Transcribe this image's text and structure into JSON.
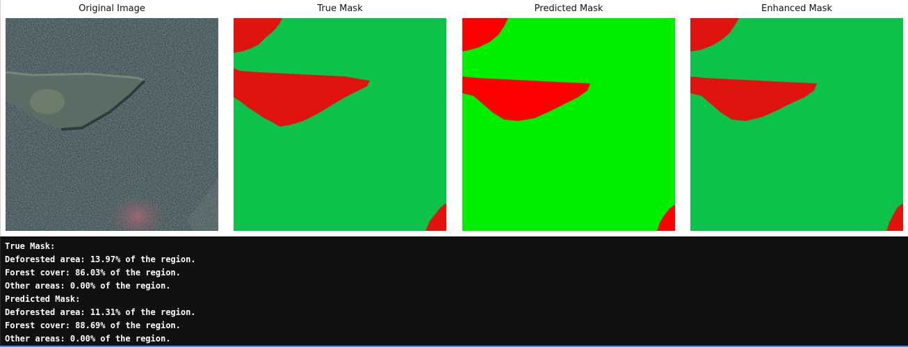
{
  "figure": {
    "panels": [
      {
        "title": "Original Image"
      },
      {
        "title": "True Mask"
      },
      {
        "title": "Predicted Mask"
      },
      {
        "title": "Enhanced Mask"
      }
    ],
    "colors": {
      "deforested": "#e0140f",
      "forest_true": "#0dc24a",
      "forest_pred": "#00ee00",
      "pred_red": "#ff0000",
      "forest_dark": "#2d3b3c"
    }
  },
  "output": {
    "lines": [
      "True Mask:",
      "Deforested area: 13.97% of the region.",
      "Forest cover: 86.03% of the region.",
      "Other areas: 0.00% of the region.",
      "Predicted Mask:",
      "Deforested area: 11.31% of the region.",
      "Forest cover: 88.69% of the region.",
      "Other areas: 0.00% of the region."
    ]
  }
}
